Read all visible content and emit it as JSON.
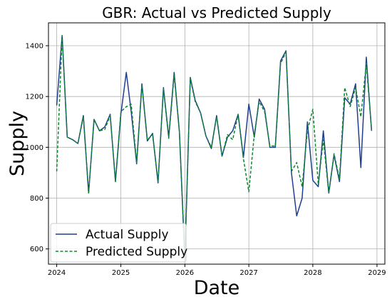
{
  "chart_data": {
    "type": "line",
    "title": "GBR: Actual vs Predicted Supply",
    "xlabel": "Date",
    "ylabel": "Supply",
    "xlim": [
      "2023-11-15",
      "2029-02-15"
    ],
    "ylim": [
      540,
      1490
    ],
    "grid": true,
    "legend_position": "lower-left",
    "x_ticks": [
      "2024",
      "2025",
      "2026",
      "2027",
      "2028",
      "2029"
    ],
    "y_ticks": [
      600,
      800,
      1000,
      1200,
      1400
    ],
    "x": [
      "2024-01",
      "2024-02",
      "2024-03",
      "2024-04",
      "2024-05",
      "2024-06",
      "2024-07",
      "2024-08",
      "2024-09",
      "2024-10",
      "2024-11",
      "2024-12",
      "2025-01",
      "2025-02",
      "2025-03",
      "2025-04",
      "2025-05",
      "2025-06",
      "2025-07",
      "2025-08",
      "2025-09",
      "2025-10",
      "2025-11",
      "2025-12",
      "2026-01",
      "2026-02",
      "2026-03",
      "2026-04",
      "2026-05",
      "2026-06",
      "2026-07",
      "2026-08",
      "2026-09",
      "2026-10",
      "2026-11",
      "2026-12",
      "2027-01",
      "2027-02",
      "2027-03",
      "2027-04",
      "2027-05",
      "2027-06",
      "2027-07",
      "2027-08",
      "2027-09",
      "2027-10",
      "2027-11",
      "2027-12",
      "2028-01",
      "2028-02",
      "2028-03",
      "2028-04",
      "2028-05",
      "2028-06",
      "2028-07",
      "2028-08",
      "2028-09",
      "2028-10",
      "2028-11",
      "2028-12"
    ],
    "series": [
      {
        "name": "Actual Supply",
        "color": "#1f3f8f",
        "style": "solid",
        "values": [
          1165,
          1440,
          1040,
          1030,
          1015,
          1125,
          820,
          1110,
          1065,
          1080,
          1130,
          865,
          1130,
          1295,
          1140,
          935,
          1250,
          1025,
          1055,
          860,
          1235,
          1040,
          1295,
          1060,
          555,
          1275,
          1185,
          1135,
          1045,
          995,
          1125,
          965,
          1040,
          1065,
          1130,
          960,
          1170,
          1040,
          1190,
          1150,
          1000,
          1000,
          1340,
          1380,
          900,
          730,
          800,
          1100,
          870,
          845,
          1065,
          820,
          970,
          865,
          1195,
          1170,
          1250,
          920,
          1355,
          1065
        ]
      },
      {
        "name": "Predicted Supply",
        "color": "#0a8a2a",
        "style": "dashed",
        "values": [
          905,
          1440,
          1040,
          1030,
          1015,
          1120,
          820,
          1110,
          1065,
          1070,
          1125,
          865,
          1140,
          1160,
          1170,
          940,
          1245,
          1030,
          1050,
          865,
          1230,
          1035,
          1285,
          1060,
          570,
          1270,
          1180,
          1135,
          1045,
          1000,
          1120,
          965,
          1050,
          1030,
          1130,
          955,
          825,
          1050,
          1180,
          1140,
          1005,
          1005,
          1330,
          1375,
          905,
          940,
          845,
          1065,
          1150,
          855,
          1030,
          820,
          975,
          875,
          1235,
          1160,
          1235,
          1120,
          1330,
          1070
        ]
      }
    ]
  }
}
